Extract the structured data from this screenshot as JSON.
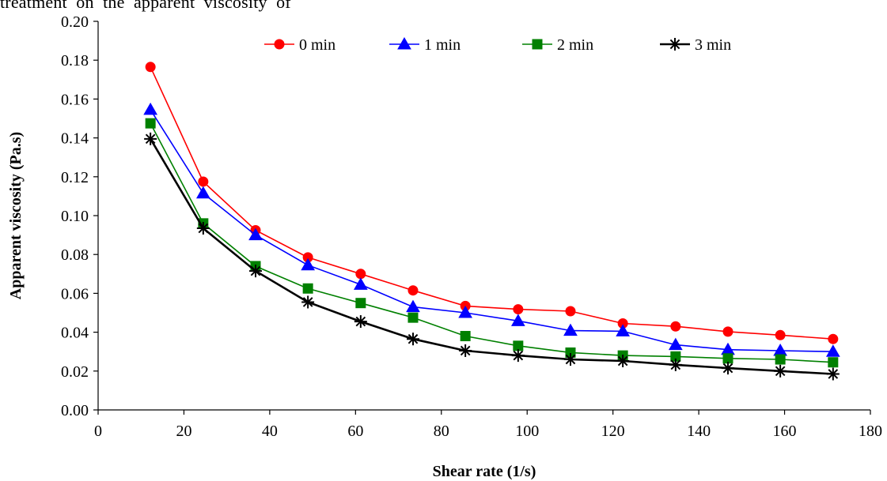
{
  "caption_fragment": "treatment  on  the  apparent  viscosity  of",
  "chart_data": {
    "type": "line",
    "title": "",
    "xlabel": "Shear rate (1/s)",
    "ylabel": "Apparent viscosity (Pa.s)",
    "xlim": [
      0,
      180
    ],
    "ylim": [
      0,
      0.2
    ],
    "xticks": [
      0,
      20,
      40,
      60,
      80,
      100,
      120,
      140,
      160,
      180
    ],
    "yticks": [
      0.0,
      0.02,
      0.04,
      0.06,
      0.08,
      0.1,
      0.12,
      0.14,
      0.16,
      0.18,
      0.2
    ],
    "xtick_labels": [
      "0",
      "20",
      "40",
      "60",
      "80",
      "100",
      "120",
      "140",
      "160",
      "180"
    ],
    "ytick_labels": [
      "0.00",
      "0.02",
      "0.04",
      "0.06",
      "0.08",
      "0.10",
      "0.12",
      "0.14",
      "0.16",
      "0.18",
      "0.20"
    ],
    "grid": false,
    "legend_position": "top",
    "x": [
      12.2,
      24.5,
      36.7,
      48.9,
      61.2,
      73.4,
      85.6,
      97.9,
      110.1,
      122.3,
      134.6,
      146.8,
      159.0,
      171.3
    ],
    "series": [
      {
        "name": "0 min",
        "color": "#ff0000",
        "marker": "circle",
        "values": [
          0.1765,
          0.1175,
          0.0925,
          0.0785,
          0.07,
          0.0615,
          0.0535,
          0.0518,
          0.0508,
          0.0445,
          0.043,
          0.0403,
          0.0385,
          0.0365
        ]
      },
      {
        "name": "1 min",
        "color": "#0000ff",
        "marker": "triangle",
        "values": [
          0.1545,
          0.1115,
          0.09,
          0.0745,
          0.0645,
          0.053,
          0.05,
          0.0458,
          0.0408,
          0.0405,
          0.0335,
          0.031,
          0.0305,
          0.03
        ]
      },
      {
        "name": "2 min",
        "color": "#008000",
        "marker": "square",
        "values": [
          0.1475,
          0.096,
          0.074,
          0.0625,
          0.055,
          0.0475,
          0.038,
          0.033,
          0.0295,
          0.028,
          0.0275,
          0.0265,
          0.026,
          0.0245
        ]
      },
      {
        "name": "3 min",
        "color": "#000000",
        "marker": "asterisk",
        "values": [
          0.1395,
          0.0935,
          0.0715,
          0.0555,
          0.0455,
          0.0365,
          0.0305,
          0.028,
          0.026,
          0.0252,
          0.0232,
          0.0215,
          0.02,
          0.0185
        ]
      }
    ]
  }
}
